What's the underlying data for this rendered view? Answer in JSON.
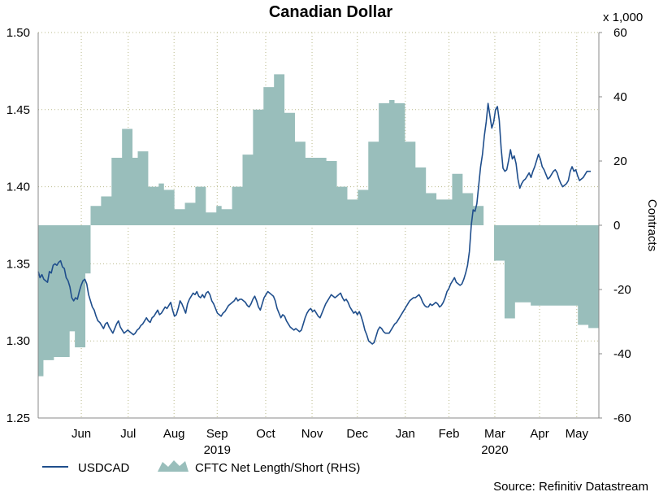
{
  "chart_data": {
    "type": "line",
    "title": "Canadian Dollar",
    "source": "Source: Refinitiv Datastream",
    "colors": {
      "line": "#1f4e8c",
      "area": "#99bebb",
      "grid": "#b9b98a",
      "axis": "#888888"
    },
    "left_axis": {
      "ylim": [
        1.25,
        1.5
      ],
      "ticks": [
        "1.25",
        "1.30",
        "1.35",
        "1.40",
        "1.45",
        "1.50"
      ]
    },
    "right_axis": {
      "ylim": [
        -60,
        60
      ],
      "ticks": [
        "-60",
        "-40",
        "-20",
        "0",
        "20",
        "40",
        "60"
      ],
      "label": "Contracts",
      "multiplier": "x 1,000"
    },
    "x_axis": {
      "months": [
        "Jun",
        "Jul",
        "Aug",
        "Sep",
        "Oct",
        "Nov",
        "Dec",
        "Jan",
        "Feb",
        "Mar",
        "Apr",
        "May"
      ],
      "month_positions": [
        4,
        8.35,
        12.6,
        16.6,
        21.1,
        25.4,
        29.6,
        34.05,
        38.1,
        42.35,
        46.5,
        49.95
      ],
      "years": [
        {
          "label": "2019",
          "pos": 16.6
        },
        {
          "label": "2020",
          "pos": 42.35
        }
      ],
      "xlim": [
        0,
        52
      ]
    },
    "series": [
      {
        "name": "CFTC Net Length/Short (RHS)",
        "kind": "weekly-step-area",
        "values": [
          -47,
          -42,
          -42,
          -41,
          -41,
          -41,
          -33,
          -38,
          -38,
          -15,
          6,
          6,
          9,
          9,
          21,
          21,
          30,
          30,
          21,
          23,
          23,
          12,
          12,
          13,
          11,
          11,
          5,
          5,
          7,
          7,
          12,
          12,
          4,
          4,
          6,
          5,
          5,
          12,
          12,
          22,
          22,
          36,
          36,
          43,
          43,
          47,
          47,
          35,
          35,
          26,
          26,
          21,
          21,
          21,
          21,
          20,
          20,
          12,
          12,
          8,
          8,
          11,
          11,
          26,
          26,
          38,
          38,
          39,
          38,
          38,
          26,
          26,
          18,
          18,
          10,
          10,
          8,
          8,
          8,
          16,
          16,
          10,
          10,
          6,
          6,
          0,
          0,
          -11,
          -11,
          -29,
          -29,
          -24,
          -24,
          -24,
          -25,
          -25,
          -25,
          -25,
          -25,
          -25,
          -25,
          -25,
          -25,
          -31,
          -31,
          -32,
          -32
        ]
      },
      {
        "name": "USDCAD",
        "kind": "daily-line",
        "values": [
          1.345,
          1.341,
          1.343,
          1.34,
          1.339,
          1.338,
          1.345,
          1.344,
          1.349,
          1.35,
          1.349,
          1.351,
          1.352,
          1.348,
          1.347,
          1.341,
          1.339,
          1.335,
          1.328,
          1.326,
          1.328,
          1.327,
          1.332,
          1.336,
          1.339,
          1.34,
          1.337,
          1.33,
          1.326,
          1.322,
          1.32,
          1.316,
          1.313,
          1.312,
          1.31,
          1.308,
          1.311,
          1.312,
          1.309,
          1.307,
          1.305,
          1.308,
          1.311,
          1.313,
          1.309,
          1.307,
          1.305,
          1.306,
          1.307,
          1.306,
          1.305,
          1.304,
          1.305,
          1.307,
          1.308,
          1.31,
          1.311,
          1.313,
          1.315,
          1.313,
          1.312,
          1.315,
          1.316,
          1.318,
          1.32,
          1.317,
          1.318,
          1.32,
          1.322,
          1.321,
          1.323,
          1.325,
          1.32,
          1.316,
          1.317,
          1.321,
          1.326,
          1.324,
          1.321,
          1.318,
          1.324,
          1.327,
          1.329,
          1.331,
          1.33,
          1.332,
          1.329,
          1.328,
          1.33,
          1.328,
          1.331,
          1.332,
          1.33,
          1.326,
          1.324,
          1.321,
          1.318,
          1.317,
          1.316,
          1.318,
          1.319,
          1.321,
          1.323,
          1.324,
          1.325,
          1.326,
          1.328,
          1.326,
          1.327,
          1.327,
          1.326,
          1.325,
          1.323,
          1.322,
          1.324,
          1.327,
          1.329,
          1.326,
          1.322,
          1.32,
          1.324,
          1.328,
          1.33,
          1.332,
          1.331,
          1.33,
          1.329,
          1.326,
          1.321,
          1.318,
          1.315,
          1.317,
          1.316,
          1.313,
          1.311,
          1.309,
          1.308,
          1.307,
          1.308,
          1.307,
          1.306,
          1.307,
          1.311,
          1.315,
          1.318,
          1.32,
          1.321,
          1.319,
          1.32,
          1.318,
          1.316,
          1.315,
          1.318,
          1.321,
          1.324,
          1.326,
          1.328,
          1.33,
          1.329,
          1.328,
          1.329,
          1.33,
          1.331,
          1.328,
          1.326,
          1.327,
          1.325,
          1.322,
          1.32,
          1.318,
          1.319,
          1.317,
          1.319,
          1.316,
          1.312,
          1.307,
          1.304,
          1.3,
          1.299,
          1.298,
          1.299,
          1.303,
          1.307,
          1.309,
          1.308,
          1.306,
          1.305,
          1.305,
          1.305,
          1.307,
          1.309,
          1.311,
          1.312,
          1.314,
          1.316,
          1.318,
          1.32,
          1.322,
          1.324,
          1.326,
          1.327,
          1.328,
          1.328,
          1.329,
          1.33,
          1.328,
          1.325,
          1.323,
          1.322,
          1.322,
          1.324,
          1.323,
          1.324,
          1.325,
          1.324,
          1.322,
          1.323,
          1.325,
          1.328,
          1.332,
          1.334,
          1.337,
          1.339,
          1.341,
          1.338,
          1.337,
          1.336,
          1.337,
          1.34,
          1.344,
          1.349,
          1.358,
          1.375,
          1.385,
          1.384,
          1.389,
          1.401,
          1.413,
          1.421,
          1.433,
          1.442,
          1.454,
          1.446,
          1.438,
          1.442,
          1.45,
          1.452,
          1.443,
          1.425,
          1.412,
          1.41,
          1.411,
          1.417,
          1.424,
          1.418,
          1.42,
          1.415,
          1.405,
          1.399,
          1.402,
          1.404,
          1.405,
          1.407,
          1.409,
          1.406,
          1.41,
          1.413,
          1.417,
          1.421,
          1.418,
          1.413,
          1.411,
          1.408,
          1.405,
          1.406,
          1.408,
          1.41,
          1.411,
          1.409,
          1.405,
          1.402,
          1.4,
          1.401,
          1.402,
          1.404,
          1.41,
          1.413,
          1.41,
          1.411,
          1.407,
          1.404,
          1.405,
          1.406,
          1.408,
          1.41,
          1.41,
          1.41
        ]
      }
    ],
    "legend": [
      "USDCAD",
      "CFTC Net Length/Short (RHS)"
    ]
  }
}
